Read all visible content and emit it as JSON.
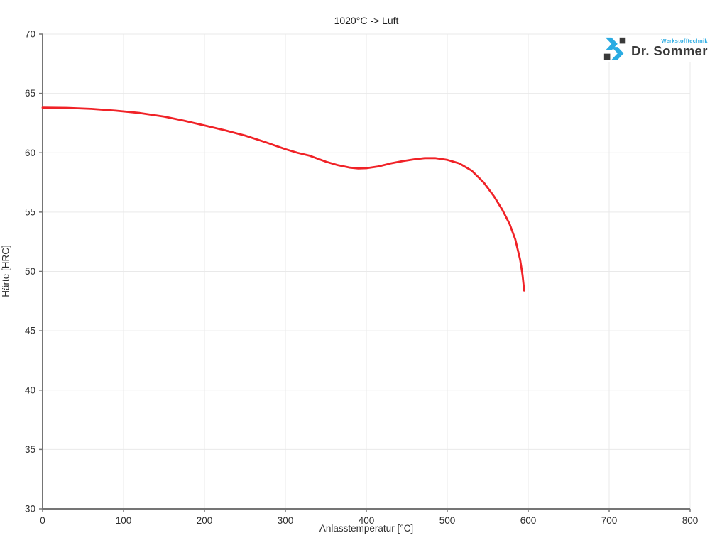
{
  "logo": {
    "brand": "Dr. Sommer",
    "tagline": "Werkstofftechnik",
    "accent_color": "#2aabe2",
    "dark_color": "#3a3a3a"
  },
  "colors": {
    "grid": "#e9e9e9",
    "axis": "#757575",
    "tick_label": "#2e2e2e",
    "title_text": "#1f1f1f"
  },
  "chart_data": {
    "type": "line",
    "title": "1020°C -> Luft",
    "xlabel": "Anlasstemperatur [°C]",
    "ylabel": "Härte [HRC]",
    "xlim": [
      0,
      800
    ],
    "ylim": [
      30,
      70
    ],
    "xticks": [
      0,
      100,
      200,
      300,
      400,
      500,
      600,
      700,
      800
    ],
    "yticks": [
      30,
      35,
      40,
      45,
      50,
      55,
      60,
      65,
      70
    ],
    "grid": true,
    "legend": "none",
    "line_color": "#f02227",
    "series": [
      {
        "name": "1020°C -> Luft",
        "x": [
          0,
          30,
          60,
          90,
          120,
          150,
          175,
          200,
          225,
          250,
          275,
          300,
          315,
          330,
          350,
          365,
          380,
          390,
          400,
          415,
          430,
          445,
          460,
          472,
          485,
          500,
          515,
          530,
          545,
          558,
          568,
          577,
          584,
          590,
          593,
          595
        ],
        "y": [
          63.8,
          63.78,
          63.7,
          63.55,
          63.35,
          63.05,
          62.7,
          62.3,
          61.9,
          61.45,
          60.9,
          60.3,
          60.0,
          59.75,
          59.25,
          58.95,
          58.75,
          58.68,
          58.7,
          58.85,
          59.1,
          59.3,
          59.45,
          59.55,
          59.55,
          59.4,
          59.1,
          58.5,
          57.5,
          56.3,
          55.2,
          54.0,
          52.7,
          51.0,
          49.7,
          48.4
        ]
      }
    ]
  }
}
